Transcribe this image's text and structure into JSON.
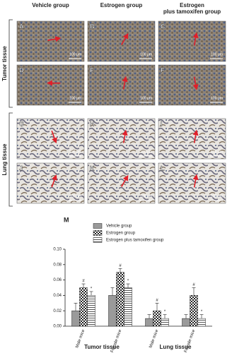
{
  "figure": {
    "columns": [
      "Vehicle group",
      "Estrogen group",
      "Estrogen plus tamoxifen group"
    ],
    "rows": [
      "Tumor tissue",
      "Lung tissue"
    ],
    "panels": [
      {
        "letter": "A",
        "scale": "100 μm"
      },
      {
        "letter": "B",
        "scale": "100 μm"
      },
      {
        "letter": "C",
        "scale": "100 μm"
      },
      {
        "letter": "D",
        "scale": "100 μm"
      },
      {
        "letter": "E",
        "scale": "100 μm"
      },
      {
        "letter": "F",
        "scale": "100 μm"
      },
      {
        "letter": "G",
        "scale": "100 μm"
      },
      {
        "letter": "H",
        "scale": "100 μm"
      },
      {
        "letter": "I",
        "scale": "100 μm"
      },
      {
        "letter": "J",
        "scale": "100 μm"
      },
      {
        "letter": "K",
        "scale": "100 μm"
      },
      {
        "letter": "L",
        "scale": "100 μm"
      }
    ],
    "chart_letter": "M"
  },
  "chart_data": {
    "type": "bar",
    "categories": [
      "Male mice",
      "Female mice",
      "Male mice",
      "Female mice"
    ],
    "groups": [
      "Tumor tissue",
      "Lung tissue"
    ],
    "series": [
      {
        "name": "Vehicle group",
        "color": "#9a9a9a",
        "pattern": "solid",
        "values": [
          0.02,
          0.04,
          0.01,
          0.01
        ],
        "errors": [
          0.01,
          0.01,
          0.005,
          0.005
        ]
      },
      {
        "name": "Estrogen group",
        "color": "#222222",
        "pattern": "checker",
        "values": [
          0.05,
          0.07,
          0.02,
          0.04
        ],
        "errors": [
          0.005,
          0.005,
          0.01,
          0.01
        ],
        "markers": [
          "#",
          "#",
          "#",
          "#"
        ]
      },
      {
        "name": "Estrogen plus tamoxifen group",
        "color": "#555555",
        "pattern": "hstripe",
        "values": [
          0.04,
          0.05,
          0.01,
          0.01
        ],
        "errors": [
          0.005,
          0.005,
          0.005,
          0.005
        ],
        "markers": [
          "*",
          "*",
          "*",
          "*"
        ]
      }
    ],
    "ylim": [
      0,
      0.1
    ],
    "yticks": [
      {
        "value": 0,
        "label": "0.00"
      },
      {
        "value": 0.02,
        "label": "0.02"
      },
      {
        "value": 0.04,
        "label": "0.04"
      },
      {
        "value": 0.06,
        "label": "0.06"
      },
      {
        "value": 0.08,
        "label": "0.08"
      },
      {
        "value": 0.1,
        "label": "0.10"
      }
    ]
  }
}
